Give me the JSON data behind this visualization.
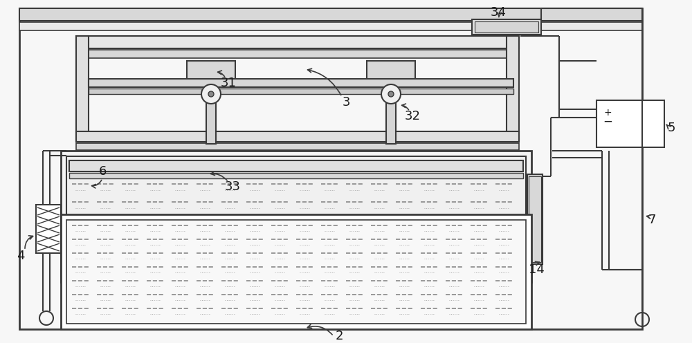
{
  "bg_color": "#f7f7f7",
  "line_color": "#3a3a3a",
  "label_color": "#1a1a1a",
  "font_size": 13,
  "fig_w": 10.0,
  "fig_h": 4.96,
  "dpi": 100
}
